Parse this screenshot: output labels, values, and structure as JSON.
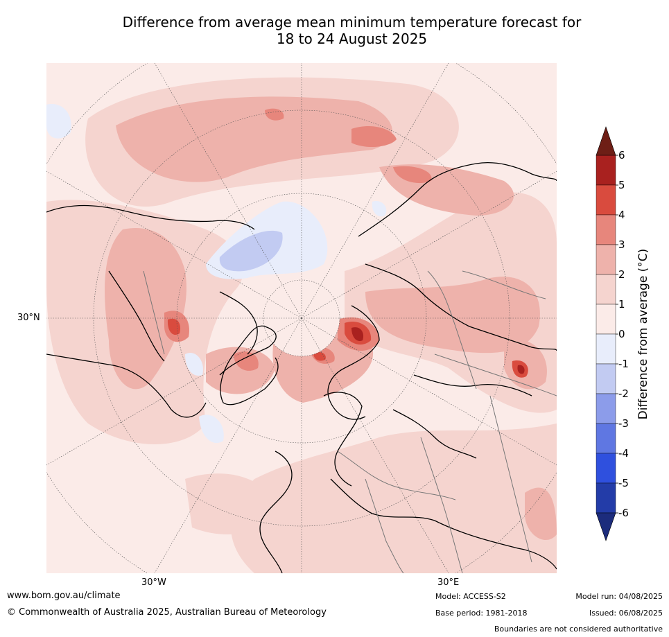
{
  "title_line1": "Difference from average mean minimum temperature forecast for",
  "title_line2": "18 to 24 August 2025",
  "map_labels": {
    "lat_30n": "30°N",
    "lon_30w": "30°W",
    "lon_30e": "30°E"
  },
  "colorbar": {
    "label": "Difference from average ($^\\circ$C)",
    "label_display": "Difference from average (°C)",
    "ticks": [
      "6",
      "5",
      "4",
      "3",
      "2",
      "1",
      "0",
      "-1",
      "-2",
      "-3",
      "-4",
      "-5",
      "-6"
    ],
    "colors": [
      "#a9211f",
      "#d94b3e",
      "#e7867c",
      "#eeb2ab",
      "#f5d4cf",
      "#fbebe8",
      "#e8edfb",
      "#c2cbf2",
      "#8c9cea",
      "#5f77e2",
      "#2f50de",
      "#233ca8"
    ],
    "over_color": "#6e1e16",
    "under_color": "#1c2c7c"
  },
  "footer": {
    "url": "www.bom.gov.au/climate",
    "copyright": "© Commonwealth of Australia 2025, Australian Bureau of Meteorology",
    "model": "Model: ACCESS-S2",
    "base_period": "Base period: 1981-2018",
    "model_run": "Model run: 04/08/2025",
    "issued": "Issued: 06/08/2025",
    "disclaimer": "Boundaries are not considered authoritative"
  }
}
